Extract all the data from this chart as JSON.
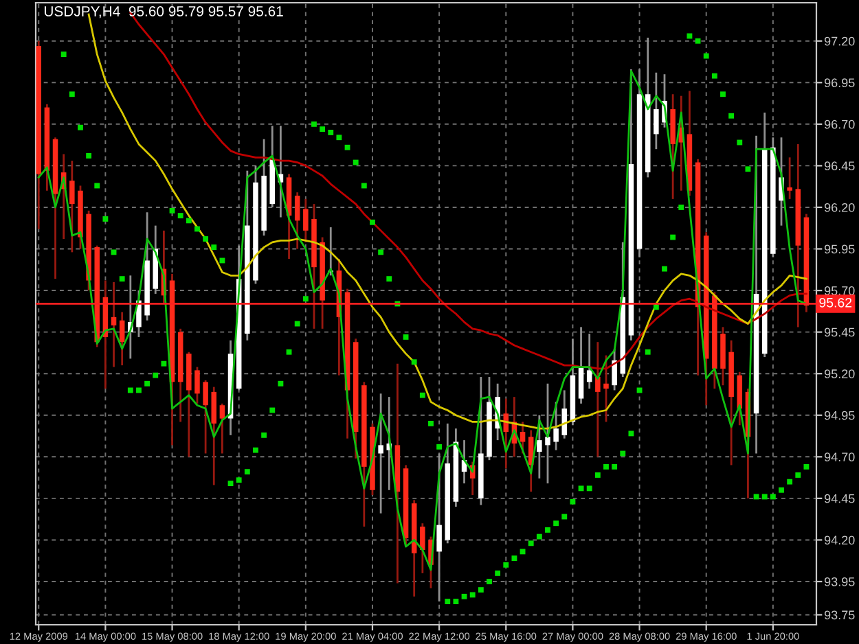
{
  "chart_data": {
    "type": "candlestick",
    "title": "USDJPY,H4  95.60 95.79 95.57 95.61",
    "categories": [
      "12 May 2009",
      null,
      null,
      null,
      null,
      null,
      null,
      null,
      "14 May 00:00",
      null,
      null,
      null,
      null,
      null,
      null,
      null,
      "15 May 08:00",
      null,
      null,
      null,
      null,
      null,
      null,
      null,
      "18 May 12:00",
      null,
      null,
      null,
      null,
      null,
      null,
      null,
      "19 May 20:00",
      null,
      null,
      null,
      null,
      null,
      null,
      null,
      "21 May 04:00",
      null,
      null,
      null,
      null,
      null,
      null,
      null,
      "22 May 12:00",
      null,
      null,
      null,
      null,
      null,
      null,
      null,
      "25 May 16:00",
      null,
      null,
      null,
      null,
      null,
      null,
      null,
      "27 May 00:00",
      null,
      null,
      null,
      null,
      null,
      null,
      null,
      "28 May 08:00",
      null,
      null,
      null,
      null,
      null,
      null,
      null,
      "29 May 16:00",
      null,
      null,
      null,
      null,
      null,
      null,
      null,
      "1 Jun 20:00",
      null,
      null,
      null,
      null
    ],
    "ohlc": [
      [
        97.17,
        97.2,
        96.07,
        96.4
      ],
      [
        96.8,
        96.82,
        96.3,
        96.42
      ],
      [
        96.61,
        96.62,
        95.77,
        96.28
      ],
      [
        96.41,
        96.52,
        96.01,
        96.31
      ],
      [
        96.36,
        96.48,
        95.93,
        96.22
      ],
      [
        96.3,
        96.33,
        95.95,
        96.02
      ],
      [
        96.16,
        96.18,
        95.7,
        95.76
      ],
      [
        95.96,
        95.97,
        95.36,
        95.39
      ],
      [
        95.66,
        95.76,
        95.11,
        95.42
      ],
      [
        95.54,
        95.75,
        95.24,
        95.49
      ],
      [
        95.52,
        95.57,
        95.25,
        95.39
      ],
      [
        95.45,
        95.79,
        95.29,
        95.51
      ],
      [
        95.48,
        95.7,
        95.42,
        95.64
      ],
      [
        95.55,
        96.17,
        95.52,
        95.88
      ],
      [
        95.71,
        96.09,
        95.68,
        95.95
      ],
      [
        95.83,
        96.06,
        95.62,
        95.67
      ],
      [
        95.76,
        95.8,
        94.77,
        95.15
      ],
      [
        95.45,
        95.47,
        94.91,
        95.15
      ],
      [
        95.32,
        95.33,
        94.7,
        95.1
      ],
      [
        95.22,
        95.24,
        95.02,
        95.08
      ],
      [
        95.15,
        95.16,
        94.72,
        95.01
      ],
      [
        95.09,
        95.12,
        94.53,
        94.9
      ],
      [
        95.01,
        95.02,
        94.72,
        94.93
      ],
      [
        94.93,
        95.4,
        94.83,
        95.32
      ],
      [
        95.11,
        95.97,
        95.1,
        95.77
      ],
      [
        95.44,
        96.42,
        95.4,
        96.09
      ],
      [
        95.76,
        96.45,
        95.74,
        96.35
      ],
      [
        96.06,
        96.61,
        96.03,
        96.39
      ],
      [
        96.22,
        96.69,
        96.2,
        96.49
      ],
      [
        96.35,
        96.69,
        96.14,
        96.4
      ],
      [
        96.38,
        96.4,
        95.89,
        96.15
      ],
      [
        96.27,
        96.29,
        95.95,
        96.12
      ],
      [
        96.19,
        96.25,
        95.99,
        96.06
      ],
      [
        96.13,
        96.22,
        95.47,
        95.84
      ],
      [
        95.99,
        96.02,
        95.47,
        95.64
      ],
      [
        95.81,
        96.08,
        95.79,
        95.82
      ],
      [
        95.82,
        95.89,
        95.19,
        95.54
      ],
      [
        95.69,
        95.71,
        94.81,
        95.1
      ],
      [
        95.39,
        95.41,
        94.69,
        94.85
      ],
      [
        95.13,
        95.15,
        94.28,
        94.64
      ],
      [
        94.88,
        94.9,
        94.47,
        94.5
      ],
      [
        94.72,
        95.08,
        94.36,
        94.77
      ],
      [
        94.74,
        95.06,
        94.5,
        94.78
      ],
      [
        94.77,
        95.26,
        93.94,
        94.49
      ],
      [
        94.63,
        94.65,
        94.17,
        94.21
      ],
      [
        94.42,
        94.44,
        93.86,
        94.12
      ],
      [
        94.28,
        94.3,
        94.0,
        94.14
      ],
      [
        94.2,
        94.22,
        93.91,
        94.05
      ],
      [
        94.13,
        94.72,
        93.83,
        94.29
      ],
      [
        94.2,
        94.9,
        94.18,
        94.66
      ],
      [
        94.43,
        94.87,
        94.4,
        94.79
      ],
      [
        94.61,
        94.8,
        94.54,
        94.68
      ],
      [
        94.65,
        94.67,
        94.47,
        94.57
      ],
      [
        94.45,
        95.18,
        94.41,
        94.72
      ],
      [
        94.7,
        95.18,
        94.68,
        95.03
      ],
      [
        94.87,
        95.14,
        94.8,
        95.06
      ],
      [
        94.96,
        95.05,
        94.63,
        94.85
      ],
      [
        94.91,
        95.06,
        94.7,
        94.78
      ],
      [
        94.85,
        94.91,
        94.72,
        94.79
      ],
      [
        94.82,
        94.86,
        94.49,
        94.65
      ],
      [
        94.73,
        94.95,
        94.57,
        94.8
      ],
      [
        94.77,
        95.14,
        94.54,
        94.82
      ],
      [
        94.79,
        95.03,
        94.74,
        94.87
      ],
      [
        94.83,
        95.1,
        94.81,
        94.99
      ],
      [
        94.91,
        95.41,
        94.89,
        95.19
      ],
      [
        95.05,
        95.48,
        95.02,
        95.24
      ],
      [
        95.15,
        95.44,
        95.11,
        95.22
      ],
      [
        95.18,
        95.39,
        94.7,
        95.09
      ],
      [
        95.14,
        95.31,
        94.91,
        95.11
      ],
      [
        95.13,
        95.35,
        95.1,
        95.28
      ],
      [
        95.2,
        95.99,
        95.18,
        95.66
      ],
      [
        95.43,
        97.03,
        95.4,
        96.46
      ],
      [
        95.95,
        97.03,
        95.9,
        96.88
      ],
      [
        96.41,
        97.22,
        96.38,
        96.88
      ],
      [
        96.64,
        97.01,
        96.55,
        96.79
      ],
      [
        96.71,
        97.0,
        96.68,
        96.84
      ],
      [
        96.79,
        96.88,
        96.25,
        96.58
      ],
      [
        96.68,
        96.87,
        96.3,
        96.59
      ],
      [
        96.64,
        96.9,
        96.27,
        96.3
      ],
      [
        96.47,
        96.49,
        95.19,
        95.6
      ],
      [
        96.03,
        96.05,
        95.01,
        95.29
      ],
      [
        95.67,
        95.69,
        95.11,
        95.23
      ],
      [
        95.44,
        95.48,
        95.13,
        95.23
      ],
      [
        95.33,
        95.4,
        94.65,
        95.06
      ],
      [
        95.19,
        95.21,
        94.89,
        94.99
      ],
      [
        95.09,
        95.11,
        94.45,
        94.82
      ],
      [
        94.96,
        96.63,
        94.72,
        95.68
      ],
      [
        95.32,
        96.77,
        95.3,
        96.55
      ],
      [
        95.92,
        96.62,
        95.9,
        96.56
      ],
      [
        96.24,
        96.62,
        96.09,
        96.38
      ],
      [
        96.32,
        96.5,
        96.25,
        96.3
      ],
      [
        96.31,
        96.58,
        95.48,
        95.97
      ],
      [
        96.14,
        96.16,
        95.57,
        95.61
      ]
    ],
    "colors": [
      "#ff2a1a",
      "#ff2a1a",
      "#ff2a1a",
      "#ff2a1a",
      "#ff2a1a",
      "#ff2a1a",
      "#ff2a1a",
      "#ff2a1a",
      "#ff2a1a",
      "#ff2a1a",
      "#ff2a1a",
      "#ffffff",
      "#ffffff",
      "#ffffff",
      "#ffffff",
      "#ff2a1a",
      "#ff2a1a",
      "#ff2a1a",
      "#ff2a1a",
      "#ff2a1a",
      "#ff2a1a",
      "#ff2a1a",
      "#ff2a1a",
      "#ffffff",
      "#ffffff",
      "#ffffff",
      "#ffffff",
      "#ffffff",
      "#ffffff",
      "#ffffff",
      "#ff2a1a",
      "#ff2a1a",
      "#ff2a1a",
      "#ff2a1a",
      "#ff2a1a",
      "#ffffff",
      "#ff2a1a",
      "#ff2a1a",
      "#ff2a1a",
      "#ff2a1a",
      "#ff2a1a",
      "#ffffff",
      "#ffffff",
      "#ff2a1a",
      "#ff2a1a",
      "#ff2a1a",
      "#ff2a1a",
      "#ff2a1a",
      "#ffffff",
      "#ffffff",
      "#ffffff",
      "#ffffff",
      "#ff2a1a",
      "#ffffff",
      "#ffffff",
      "#ffffff",
      "#ff2a1a",
      "#ff2a1a",
      "#ff2a1a",
      "#ff2a1a",
      "#ffffff",
      "#ffffff",
      "#ffffff",
      "#ffffff",
      "#ffffff",
      "#ffffff",
      "#ffffff",
      "#ff2a1a",
      "#ff2a1a",
      "#ffffff",
      "#ffffff",
      "#ffffff",
      "#ffffff",
      "#ffffff",
      "#ffffff",
      "#ffffff",
      "#ff2a1a",
      "#ff2a1a",
      "#ff2a1a",
      "#ff2a1a",
      "#ff2a1a",
      "#ff2a1a",
      "#ff2a1a",
      "#ff2a1a",
      "#ff2a1a",
      "#ff2a1a",
      "#ffffff",
      "#ffffff",
      "#ffffff",
      "#ffffff",
      "#ff2a1a",
      "#ff2a1a",
      "#ff2a1a"
    ],
    "series": [
      {
        "type": "line",
        "color": "#c00000",
        "values": [
          null,
          null,
          null,
          null,
          null,
          null,
          null,
          null,
          null,
          null,
          null,
          97.37,
          97.3,
          97.24,
          97.18,
          97.12,
          97.04,
          96.96,
          96.88,
          96.79,
          96.71,
          96.65,
          96.59,
          96.54,
          96.52,
          96.51,
          96.5,
          96.5,
          96.49,
          96.48,
          96.48,
          96.47,
          96.45,
          96.42,
          96.39,
          96.34,
          96.3,
          96.26,
          96.22,
          96.16,
          96.11,
          96.06,
          96.01,
          95.96,
          95.9,
          95.83,
          95.76,
          95.71,
          95.65,
          95.6,
          95.56,
          95.51,
          95.47,
          95.46,
          95.44,
          95.43,
          95.4,
          95.37,
          95.35,
          95.33,
          95.31,
          95.29,
          95.27,
          95.25,
          95.25,
          95.24,
          95.24,
          95.23,
          95.23,
          95.26,
          95.29,
          95.35,
          95.42,
          95.48,
          95.53,
          95.57,
          95.61,
          95.64,
          95.65,
          95.63,
          95.6,
          95.58,
          95.56,
          95.54,
          95.52,
          95.5,
          95.53,
          95.56,
          95.6,
          95.64,
          95.67,
          95.68,
          95.68
        ]
      },
      {
        "type": "line",
        "color": "#d8c800",
        "values": [
          null,
          null,
          null,
          null,
          null,
          null,
          97.36,
          97.12,
          96.96,
          96.86,
          96.77,
          96.67,
          96.58,
          96.53,
          96.48,
          96.4,
          96.31,
          96.23,
          96.15,
          96.08,
          96.01,
          95.91,
          95.81,
          95.79,
          95.79,
          95.84,
          95.91,
          95.96,
          95.99,
          96.0,
          96.0,
          96.01,
          96.0,
          95.99,
          95.97,
          95.93,
          95.88,
          95.81,
          95.76,
          95.68,
          95.6,
          95.54,
          95.45,
          95.38,
          95.32,
          95.27,
          95.16,
          95.03,
          95.0,
          94.98,
          94.95,
          94.93,
          94.91,
          94.91,
          94.92,
          94.92,
          94.91,
          94.9,
          94.89,
          94.88,
          94.87,
          94.87,
          94.88,
          94.9,
          94.92,
          94.94,
          94.95,
          94.97,
          94.98,
          95.05,
          95.11,
          95.25,
          95.37,
          95.5,
          95.62,
          95.7,
          95.76,
          95.8,
          95.79,
          95.76,
          95.72,
          95.67,
          95.62,
          95.58,
          95.53,
          95.5,
          95.57,
          95.64,
          95.69,
          95.73,
          95.79,
          95.78,
          95.77
        ]
      },
      {
        "type": "line",
        "color": "#10c010",
        "values": [
          96.38,
          96.44,
          96.2,
          96.38,
          96.03,
          96.05,
          95.79,
          95.38,
          95.46,
          95.47,
          95.35,
          95.46,
          95.65,
          96.01,
          95.93,
          95.79,
          94.99,
          95.03,
          95.07,
          95.01,
          94.99,
          94.82,
          94.92,
          94.96,
          95.7,
          96.38,
          96.42,
          96.47,
          96.51,
          96.33,
          96.13,
          96.03,
          95.95,
          95.69,
          95.74,
          95.83,
          95.68,
          95.05,
          94.76,
          94.51,
          94.69,
          94.96,
          94.83,
          94.39,
          94.16,
          94.2,
          94.14,
          94.02,
          94.6,
          94.76,
          94.78,
          94.68,
          94.61,
          95.05,
          95.06,
          94.96,
          94.73,
          94.86,
          94.74,
          94.6,
          94.92,
          94.82,
          95.01,
          95.17,
          95.24,
          95.24,
          95.24,
          95.17,
          95.28,
          95.34,
          95.7,
          97.02,
          96.92,
          96.79,
          96.87,
          96.81,
          96.42,
          96.77,
          96.2,
          95.7,
          95.17,
          95.23,
          95.05,
          94.88,
          95.01,
          94.72,
          96.55,
          96.55,
          96.55,
          96.4,
          95.95,
          95.64,
          95.62
        ]
      },
      {
        "type": "scatter",
        "color": "#00e000",
        "marker": "square",
        "values": [
          null,
          null,
          null,
          97.12,
          96.88,
          96.68,
          96.51,
          96.33,
          96.13,
          95.93,
          95.77,
          95.1,
          95.1,
          95.14,
          95.19,
          95.26,
          96.18,
          96.15,
          96.12,
          96.07,
          96.01,
          95.96,
          95.88,
          94.54,
          94.56,
          94.61,
          94.74,
          94.83,
          94.98,
          95.14,
          95.33,
          95.5,
          95.65,
          96.7,
          96.67,
          96.65,
          96.62,
          96.56,
          96.47,
          96.33,
          96.11,
          95.93,
          95.77,
          95.62,
          95.42,
          95.27,
          95.07,
          94.9,
          94.76,
          93.83,
          93.83,
          93.86,
          93.87,
          93.9,
          93.95,
          94.0,
          94.05,
          94.09,
          94.13,
          94.18,
          94.22,
          94.26,
          94.3,
          94.34,
          94.43,
          94.51,
          94.51,
          94.59,
          94.64,
          94.64,
          94.72,
          94.84,
          95.1,
          95.33,
          95.6,
          95.83,
          96.02,
          96.2,
          97.23,
          97.2,
          97.11,
          96.99,
          96.88,
          96.75,
          96.59,
          96.43,
          94.46,
          94.46,
          94.46,
          94.5,
          94.55,
          94.59,
          94.64
        ]
      }
    ],
    "ylim": [
      93.69,
      97.43
    ],
    "yticks": [
      {
        "value": 97.2,
        "label": "97.20"
      },
      96.95,
      {
        "value": 96.7,
        "label": "96.70"
      },
      96.45,
      {
        "value": 96.2,
        "label": "96.20"
      },
      95.95,
      {
        "value": 95.7,
        "label": "95.70"
      },
      95.45,
      {
        "value": 95.2,
        "label": "95.20"
      },
      94.95,
      {
        "value": 94.7,
        "label": "94.70"
      },
      94.45,
      {
        "value": 94.2,
        "label": "94.20"
      },
      93.95,
      93.75
    ],
    "ref_lines": [
      {
        "axis": "y",
        "value": 95.62,
        "label": "95.62",
        "color": "#ff2020"
      }
    ],
    "grid": true
  }
}
